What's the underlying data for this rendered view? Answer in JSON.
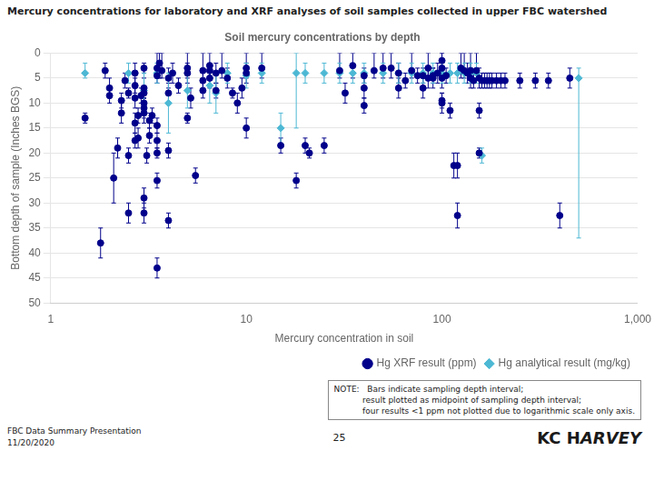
{
  "chart_data": {
    "type": "scatter",
    "title": "Soil mercury concentrations by depth",
    "x_label": "Mercury concentration in soil",
    "y_label": "Bottom depth of sample (Inches BGS)",
    "page_title": "Mercury concentrations for laboratory and XRF analyses of soil samples collected in upper FBC watershed",
    "footer_left": "FBC Data Summary Presentation",
    "footer_date": "11/20/2020",
    "footer_page": "25",
    "logo": [
      "KC H",
      "ARVEY"
    ],
    "annotations": [
      "NOTE:   Bars indicate sampling depth interval;\n           result plotted as midpoint of sampling depth interval;\n           four results <1 ppm not plotted due to logarithmic scale only axis."
    ],
    "log": "x",
    "xlim": [
      1,
      1000
    ],
    "xticks": [
      1,
      10,
      100,
      {
        "value": 1000,
        "label": "1,000"
      }
    ],
    "ylim": [
      50,
      0
    ],
    "yticks": [
      0,
      5,
      10,
      15,
      20,
      25,
      30,
      35,
      40,
      45,
      50
    ],
    "grid": "y",
    "legend": "lower right",
    "series": [
      {
        "name": "Hg XRF result (ppm)",
        "color": "#00008B",
        "marker": "circle",
        "x": [
          1.5,
          1.8,
          1.9,
          2.0,
          2.0,
          2.1,
          2.2,
          2.3,
          2.3,
          2.4,
          2.5,
          2.5,
          2.5,
          2.7,
          2.7,
          2.7,
          2.7,
          2.7,
          2.8,
          2.8,
          2.9,
          3.0,
          3.0,
          3.0,
          3.0,
          3.0,
          3.0,
          3.0,
          3.0,
          3.1,
          3.2,
          3.2,
          3.3,
          3.5,
          3.5,
          3.5,
          3.5,
          3.5,
          3.5,
          3.5,
          3.6,
          3.7,
          4.0,
          4.0,
          4.0,
          4.0,
          4.2,
          4.5,
          5.0,
          5.0,
          5.0,
          5.2,
          5.5,
          6.0,
          6.0,
          6.0,
          6.5,
          6.5,
          6.5,
          7.0,
          7.0,
          7.5,
          8.0,
          8.5,
          9.0,
          9.5,
          10.0,
          10.0,
          10.0,
          12.0,
          15.0,
          18.0,
          20.0,
          21.0,
          25.0,
          30.0,
          32.0,
          35.0,
          40.0,
          40.0,
          40.0,
          45.0,
          50.0,
          55.0,
          60.0,
          60.0,
          65.0,
          70.0,
          75.0,
          80.0,
          80.0,
          85.0,
          85.0,
          90.0,
          90.0,
          95.0,
          100.0,
          100.0,
          100.0,
          100.0,
          100.0,
          105.0,
          110.0,
          115.0,
          120.0,
          120.0,
          125.0,
          130.0,
          135.0,
          140.0,
          140.0,
          145.0,
          150.0,
          155.0,
          155.0,
          155.0,
          160.0,
          165.0,
          170.0,
          175.0,
          180.0,
          190.0,
          200.0,
          210.0,
          250.0,
          300.0,
          350.0,
          400.0,
          450.0
        ],
        "values": [
          13,
          38,
          3.5,
          7,
          8.5,
          25,
          19,
          12,
          9.5,
          5.5,
          8,
          20.5,
          32,
          4,
          6.5,
          9,
          14,
          17.5,
          12.5,
          17,
          8.5,
          3,
          7,
          8,
          10,
          11,
          12,
          29,
          32,
          20.5,
          13.5,
          16.5,
          12.5,
          3,
          4.5,
          14.5,
          17.5,
          20,
          25.5,
          43,
          2,
          3.5,
          5,
          8,
          19.5,
          33.5,
          4,
          6.5,
          3,
          4,
          13,
          9,
          24.5,
          3.5,
          5.5,
          7.5,
          2.5,
          3.5,
          5,
          4,
          7.5,
          3.5,
          5,
          8,
          10,
          7,
          3,
          4,
          15,
          3,
          18.5,
          25.5,
          18.5,
          20,
          18.5,
          3.5,
          8,
          2.5,
          4.5,
          7,
          10.5,
          3.5,
          3,
          3,
          4,
          7,
          5.5,
          3.5,
          4.5,
          4.5,
          7,
          3,
          5,
          4.5,
          5,
          4,
          1.5,
          3,
          5,
          9.5,
          10,
          4.5,
          11.5,
          22.5,
          22.5,
          32.5,
          3,
          3.5,
          4,
          3.5,
          5,
          5.5,
          3.5,
          5,
          11.5,
          20,
          5.5,
          5.5,
          5.5,
          5.5,
          5.5,
          5.5,
          5.5,
          5.5,
          5.5,
          5.5,
          5.5,
          32.5,
          5
        ],
        "y_lo": [
          12,
          35,
          2,
          5,
          7,
          20,
          17,
          10,
          8,
          4,
          7,
          19,
          30,
          2,
          5,
          7,
          12,
          16,
          11,
          15,
          7,
          2,
          5,
          7,
          8,
          9,
          10,
          27,
          30,
          19,
          12,
          15,
          11,
          0,
          3,
          13,
          16,
          19,
          24,
          41,
          0,
          0,
          3,
          6,
          18,
          32,
          2,
          5,
          0,
          2,
          12,
          7,
          23,
          0,
          4,
          6,
          0,
          2,
          3,
          2,
          6,
          0,
          3,
          7,
          8,
          5,
          0,
          2,
          13,
          0,
          17,
          24,
          17,
          19,
          17,
          0,
          6,
          0,
          3,
          5,
          9,
          0,
          0,
          0,
          2,
          5,
          4,
          0,
          3,
          3,
          5,
          0,
          3,
          3,
          3,
          2,
          0,
          0,
          3,
          8,
          8,
          3,
          10,
          20,
          20,
          30,
          0,
          0,
          2,
          0,
          3,
          4,
          0,
          3,
          10,
          19,
          4,
          4,
          4,
          4,
          4,
          4,
          4,
          4,
          4,
          4,
          4,
          30,
          3
        ],
        "y_hi": [
          14,
          41,
          5,
          9,
          10,
          30,
          21,
          14,
          11,
          7,
          9,
          22,
          34,
          6,
          8,
          11,
          16,
          19,
          14,
          19,
          10,
          4,
          9,
          9,
          12,
          13,
          14,
          31,
          34,
          22,
          15,
          18,
          14,
          5,
          6,
          16,
          19,
          21,
          27,
          45,
          5,
          5,
          7,
          10,
          21,
          35,
          6,
          8,
          5,
          6,
          14,
          11,
          26,
          5,
          7,
          9,
          5,
          5,
          7,
          6,
          9,
          5,
          7,
          9,
          12,
          9,
          5,
          6,
          17,
          5,
          20,
          27,
          20,
          21,
          20,
          5,
          10,
          5,
          6,
          9,
          12,
          5,
          5,
          5,
          6,
          9,
          7,
          5,
          6,
          6,
          9,
          5,
          7,
          6,
          7,
          6,
          3,
          5,
          7,
          11,
          12,
          6,
          13,
          25,
          25,
          35,
          5,
          5,
          6,
          5,
          7,
          7,
          5,
          7,
          13,
          21,
          7,
          7,
          7,
          7,
          7,
          7,
          7,
          7,
          7,
          7,
          7,
          35,
          7
        ]
      },
      {
        "name": "Hg analytical result (mg/kg)",
        "color": "#4db8d4",
        "marker": "diamond",
        "x": [
          1.5,
          2.5,
          3.0,
          3.5,
          4.0,
          5.0,
          6.5,
          7.0,
          8.0,
          10.0,
          12.0,
          15.0,
          18.0,
          20.0,
          25.0,
          30.0,
          35.0,
          40.0,
          50.0,
          60.0,
          70.0,
          80.0,
          90.0,
          100.0,
          110.0,
          120.0,
          130.0,
          140.0,
          150.0,
          160.0,
          500.0
        ],
        "values": [
          4,
          4,
          7.5,
          4,
          10,
          7.5,
          6.5,
          8,
          4,
          4.5,
          4,
          15,
          4,
          4,
          4,
          4,
          4,
          4,
          4,
          4,
          4,
          4,
          4,
          4,
          4,
          4,
          4,
          4,
          4,
          20.5,
          5
        ],
        "y_lo": [
          2,
          2,
          4,
          2,
          4,
          4,
          3,
          4,
          2,
          2,
          2,
          12,
          0,
          2,
          2,
          2,
          2,
          2,
          2,
          2,
          2,
          2,
          2,
          2,
          2,
          2,
          2,
          2,
          2,
          19,
          3
        ],
        "y_hi": [
          5,
          6,
          11,
          6,
          16,
          11,
          10,
          12,
          6,
          7,
          6,
          18,
          15,
          6,
          6,
          6,
          6,
          6,
          6,
          6,
          6,
          6,
          6,
          6,
          6,
          6,
          6,
          6,
          6,
          22,
          37
        ]
      }
    ]
  }
}
